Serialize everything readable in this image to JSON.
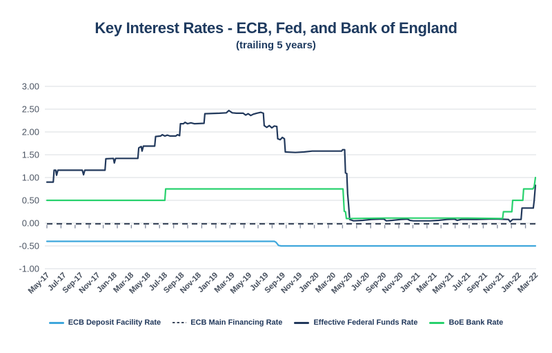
{
  "title": "Key Interest Rates - ECB, Fed, and Bank of England",
  "subtitle": "(trailing 5 years)",
  "colors": {
    "title_navy": "#1e3a5f",
    "grid": "#dadde2",
    "axis_text": "#47505e",
    "zero_axis_tick": "#55607a"
  },
  "chart_data": {
    "type": "line",
    "title": "Key Interest Rates - ECB, Fed, and Bank of England",
    "subtitle": "(trailing 5 years)",
    "grid": true,
    "legend_position": "bottom",
    "x_axis": {
      "unit": "months since May-2017",
      "tick_labels": [
        "May-17",
        "Jul-17",
        "Sep-17",
        "Nov-17",
        "Jan-18",
        "Mar-18",
        "May-18",
        "Jul-18",
        "Sep-18",
        "Nov-18",
        "Jan-19",
        "Mar-19",
        "May-19",
        "Jul-19",
        "Sep-19",
        "Nov-19",
        "Jan-20",
        "Mar-20",
        "May-20",
        "Jul-20",
        "Sep-20",
        "Nov-20",
        "Jan-21",
        "Mar-21",
        "May-21",
        "Jul-21",
        "Sep-21",
        "Nov-21",
        "Jan-22",
        "Mar-22"
      ],
      "tick_month_step": 2,
      "category_ticks_at_zero": true
    },
    "y_axis": {
      "min": -1.0,
      "max": 3.0,
      "step": 0.5,
      "tick_labels": [
        "3.00",
        "2.50",
        "2.00",
        "1.50",
        "1.00",
        "0.50",
        "0.00",
        "-0.50",
        "-1.00"
      ],
      "tick_values": [
        3.0,
        2.5,
        2.0,
        1.5,
        1.0,
        0.5,
        0.0,
        -0.5,
        -1.0
      ]
    },
    "series": [
      {
        "name": "ECB Deposit Facility Rate",
        "color": "#3fa7dc",
        "style": "solid",
        "points": [
          [
            0,
            -0.4
          ],
          [
            27.0,
            -0.4
          ],
          [
            27.2,
            -0.42
          ],
          [
            27.5,
            -0.49
          ],
          [
            27.8,
            -0.5
          ],
          [
            58,
            -0.5
          ]
        ]
      },
      {
        "name": "ECB Main Financing Rate",
        "color": "#3e4a5e",
        "style": "dashed",
        "points": [
          [
            0,
            -0.015
          ],
          [
            58,
            -0.015
          ]
        ]
      },
      {
        "name": "Effective Federal Funds Rate",
        "color": "#22395c",
        "style": "solid",
        "points": [
          [
            0,
            0.9
          ],
          [
            0.75,
            0.9
          ],
          [
            0.85,
            1.16
          ],
          [
            1.05,
            1.16
          ],
          [
            1.15,
            1.05
          ],
          [
            1.3,
            1.16
          ],
          [
            4.2,
            1.16
          ],
          [
            4.35,
            1.06
          ],
          [
            4.5,
            1.16
          ],
          [
            6.9,
            1.16
          ],
          [
            7.0,
            1.41
          ],
          [
            7.9,
            1.42
          ],
          [
            8.0,
            1.32
          ],
          [
            8.15,
            1.42
          ],
          [
            10.8,
            1.42
          ],
          [
            10.9,
            1.65
          ],
          [
            11.2,
            1.68
          ],
          [
            11.3,
            1.58
          ],
          [
            11.45,
            1.69
          ],
          [
            12.8,
            1.69
          ],
          [
            12.9,
            1.9
          ],
          [
            13.5,
            1.91
          ],
          [
            13.7,
            1.94
          ],
          [
            14.0,
            1.91
          ],
          [
            14.3,
            1.93
          ],
          [
            14.6,
            1.91
          ],
          [
            15.3,
            1.91
          ],
          [
            15.5,
            1.94
          ],
          [
            15.75,
            1.92
          ],
          [
            15.85,
            2.18
          ],
          [
            16.2,
            2.18
          ],
          [
            16.4,
            2.21
          ],
          [
            16.7,
            2.18
          ],
          [
            17.1,
            2.2
          ],
          [
            17.5,
            2.18
          ],
          [
            18.65,
            2.19
          ],
          [
            18.75,
            2.4
          ],
          [
            20.5,
            2.41
          ],
          [
            21.3,
            2.42
          ],
          [
            21.6,
            2.47
          ],
          [
            22.0,
            2.42
          ],
          [
            22.5,
            2.41
          ],
          [
            23.3,
            2.41
          ],
          [
            23.6,
            2.37
          ],
          [
            23.9,
            2.4
          ],
          [
            24.2,
            2.36
          ],
          [
            24.5,
            2.39
          ],
          [
            24.9,
            2.41
          ],
          [
            25.4,
            2.43
          ],
          [
            25.7,
            2.41
          ],
          [
            25.8,
            2.14
          ],
          [
            26.1,
            2.1
          ],
          [
            26.4,
            2.14
          ],
          [
            26.7,
            2.09
          ],
          [
            27.0,
            2.13
          ],
          [
            27.3,
            2.12
          ],
          [
            27.4,
            1.85
          ],
          [
            27.7,
            1.83
          ],
          [
            27.95,
            1.88
          ],
          [
            28.2,
            1.85
          ],
          [
            28.3,
            1.56
          ],
          [
            29.5,
            1.55
          ],
          [
            30.5,
            1.56
          ],
          [
            31.5,
            1.58
          ],
          [
            33.5,
            1.58
          ],
          [
            35.0,
            1.58
          ],
          [
            35.1,
            1.61
          ],
          [
            35.35,
            1.61
          ],
          [
            35.45,
            1.1
          ],
          [
            35.6,
            1.09
          ],
          [
            35.7,
            0.65
          ],
          [
            35.8,
            0.44
          ],
          [
            35.95,
            0.08
          ],
          [
            36.4,
            0.05
          ],
          [
            37.5,
            0.06
          ],
          [
            38.5,
            0.08
          ],
          [
            39.5,
            0.09
          ],
          [
            40.0,
            0.09
          ],
          [
            40.3,
            0.05
          ],
          [
            41.0,
            0.06
          ],
          [
            42.0,
            0.08
          ],
          [
            42.8,
            0.09
          ],
          [
            43.1,
            0.06
          ],
          [
            43.5,
            0.05
          ],
          [
            45.5,
            0.05
          ],
          [
            46.5,
            0.06
          ],
          [
            47.5,
            0.08
          ],
          [
            48.4,
            0.09
          ],
          [
            48.7,
            0.06
          ],
          [
            49.2,
            0.08
          ],
          [
            51.0,
            0.08
          ],
          [
            52.5,
            0.09
          ],
          [
            53.6,
            0.09
          ],
          [
            54.8,
            0.08
          ],
          [
            55.0,
            0.03
          ],
          [
            55.3,
            0.08
          ],
          [
            56.3,
            0.08
          ],
          [
            56.4,
            0.33
          ],
          [
            57.75,
            0.33
          ],
          [
            57.85,
            0.5
          ],
          [
            58,
            0.83
          ]
        ]
      },
      {
        "name": "BoE Bank Rate",
        "color": "#28d16d",
        "style": "solid",
        "points": [
          [
            0,
            0.5
          ],
          [
            14.0,
            0.5
          ],
          [
            14.1,
            0.75
          ],
          [
            35.15,
            0.75
          ],
          [
            35.3,
            0.26
          ],
          [
            35.45,
            0.25
          ],
          [
            35.55,
            0.1
          ],
          [
            40,
            0.11
          ],
          [
            50,
            0.11
          ],
          [
            54.1,
            0.1
          ],
          [
            54.2,
            0.25
          ],
          [
            55.2,
            0.25
          ],
          [
            55.3,
            0.5
          ],
          [
            56.5,
            0.5
          ],
          [
            56.6,
            0.75
          ],
          [
            57.7,
            0.75
          ],
          [
            57.85,
            0.8
          ],
          [
            58,
            1.0
          ]
        ]
      }
    ]
  },
  "legend": {
    "items": [
      {
        "label": "ECB Deposit Facility Rate"
      },
      {
        "label": "ECB Main Financing Rate"
      },
      {
        "label": "Effective Federal Funds Rate"
      },
      {
        "label": "BoE Bank Rate"
      }
    ]
  }
}
